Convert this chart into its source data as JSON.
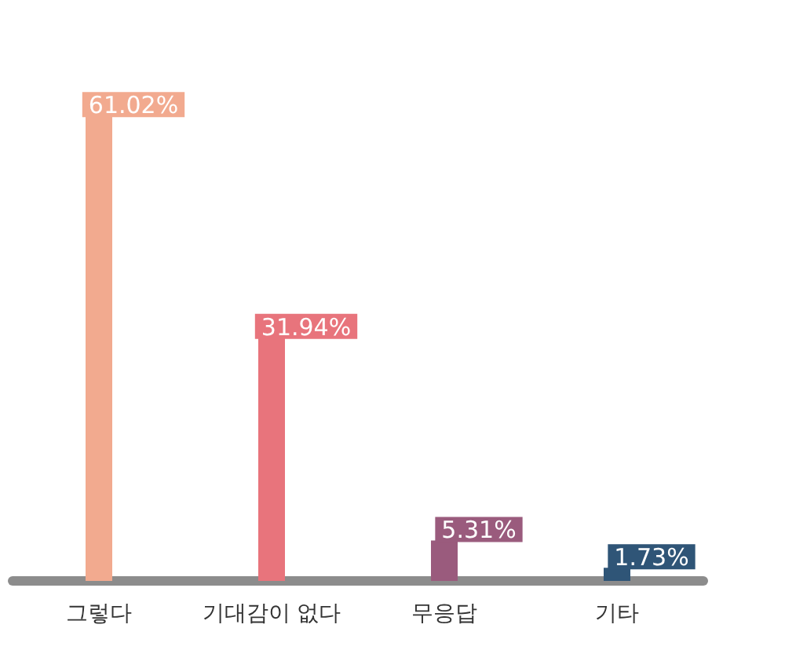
{
  "chart_data": {
    "type": "bar",
    "categories": [
      "그렇다",
      "기대감이 없다",
      "무응답",
      "기타"
    ],
    "values": [
      61.02,
      31.94,
      5.31,
      1.73
    ],
    "colors": [
      "#f2aa8f",
      "#e8747c",
      "#9a5b7d",
      "#2f5577"
    ],
    "value_labels": [
      "61.02%",
      "31.94%",
      "5.31%",
      "1.73%"
    ]
  }
}
